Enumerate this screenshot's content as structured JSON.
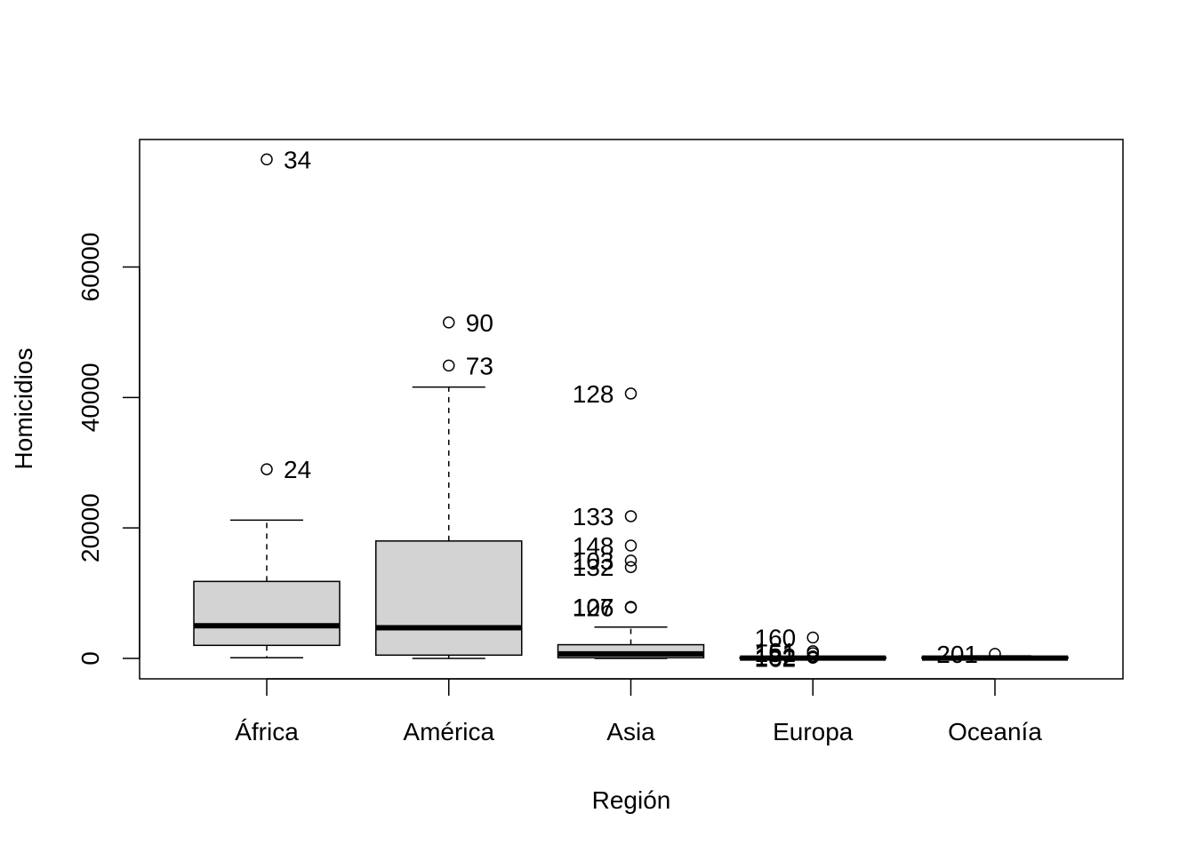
{
  "chart_data": {
    "type": "boxplot",
    "xlabel": "Región",
    "ylabel": "Homicidios",
    "ylim": [
      -3000,
      79500
    ],
    "yticks": [
      0,
      20000,
      40000,
      60000
    ],
    "ytick_labels": [
      "0",
      "20000",
      "40000",
      "60000"
    ],
    "categories": [
      "África",
      "América",
      "Asia",
      "Europa",
      "Oceanía"
    ],
    "box_fill": "#d3d3d3",
    "grid": false,
    "legend": "none",
    "boxes": [
      {
        "category": "África",
        "whisker_low": 100,
        "q1": 2000,
        "median": 5000,
        "q3": 11800,
        "whisker_high": 21200,
        "outliers": [
          {
            "value": 76500,
            "label": "34"
          },
          {
            "value": 29000,
            "label": "24"
          }
        ]
      },
      {
        "category": "América",
        "whisker_low": 0,
        "q1": 500,
        "median": 4700,
        "q3": 18000,
        "whisker_high": 41600,
        "outliers": [
          {
            "value": 51500,
            "label": "90"
          },
          {
            "value": 44900,
            "label": "73"
          }
        ]
      },
      {
        "category": "Asia",
        "whisker_low": 0,
        "q1": 100,
        "median": 700,
        "q3": 2100,
        "whisker_high": 4800,
        "outliers": [
          {
            "value": 40600,
            "label": "128"
          },
          {
            "value": 21800,
            "label": "133"
          },
          {
            "value": 17300,
            "label": "148"
          },
          {
            "value": 15000,
            "label": "103"
          },
          {
            "value": 14000,
            "label": "132"
          },
          {
            "value": 7900,
            "label": "107"
          },
          {
            "value": 7800,
            "label": "126"
          }
        ]
      },
      {
        "category": "Europa",
        "whisker_low": 0,
        "q1": 0,
        "median": 50,
        "q3": 150,
        "whisker_high": 300,
        "outliers": [
          {
            "value": 3200,
            "label": "160"
          },
          {
            "value": 1100,
            "label": "161"
          },
          {
            "value": 800,
            "label": "151"
          },
          {
            "value": 300,
            "label": "182"
          },
          {
            "value": 100,
            "label": "162"
          }
        ]
      },
      {
        "category": "Oceanía",
        "whisker_low": 0,
        "q1": 0,
        "median": 50,
        "q3": 200,
        "whisker_high": 400,
        "outliers": [
          {
            "value": 700,
            "label": "201"
          }
        ]
      }
    ]
  }
}
